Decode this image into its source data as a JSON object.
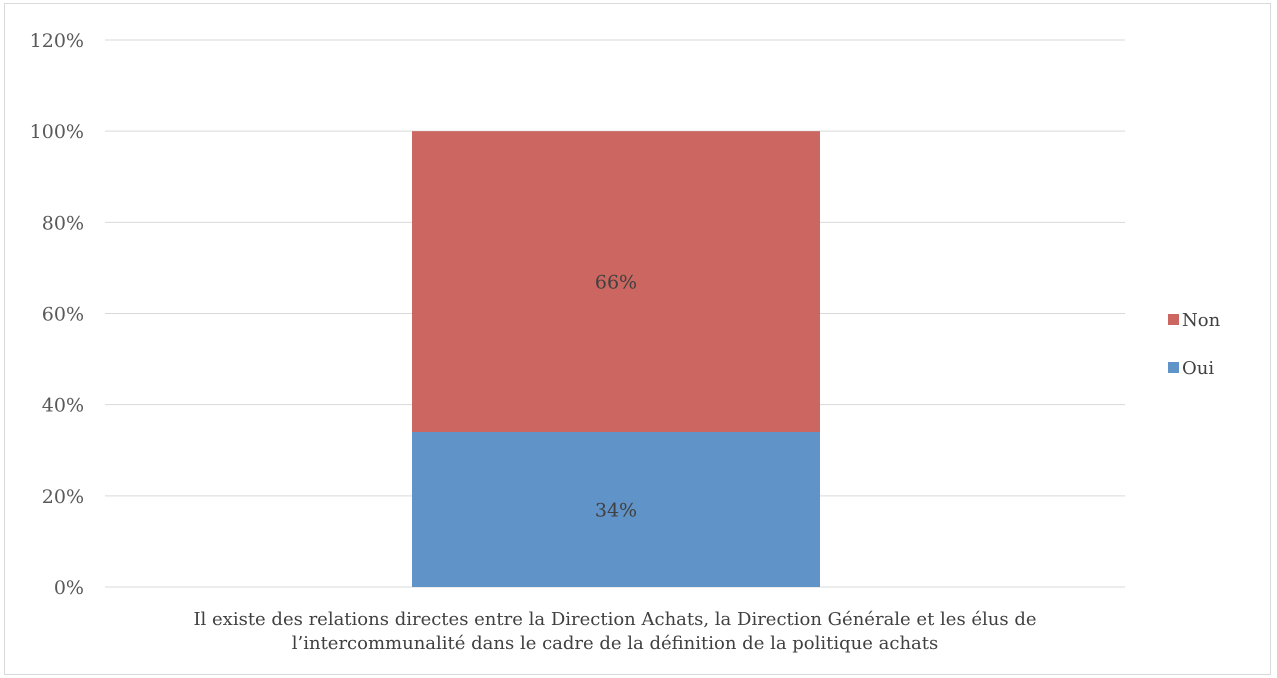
{
  "chart_data": {
    "type": "bar",
    "stacked": true,
    "categories": [
      "Il existe des relations directes entre la Direction Achats, la Direction Générale et les élus de l’intercommunalité dans le cadre de la définition de la politique achats"
    ],
    "category_label_lines": [
      "Il existe des relations directes entre la Direction Achats, la Direction Générale et les élus de",
      "l’intercommunalité dans le cadre de la définition de la politique achats"
    ],
    "series": [
      {
        "name": "Oui",
        "values": [
          0.34
        ],
        "data_labels": [
          "34%"
        ],
        "color": "#6094c9"
      },
      {
        "name": "Non",
        "values": [
          0.66
        ],
        "data_labels": [
          "66%"
        ],
        "color": "#cc6660"
      }
    ],
    "yticks": [
      "0%",
      "20%",
      "40%",
      "60%",
      "80%",
      "100%",
      "120%"
    ],
    "ylim": [
      0,
      1.2
    ],
    "grid": true,
    "legend": {
      "position": "right",
      "entries": [
        {
          "name": "Non",
          "color": "#cc6660"
        },
        {
          "name": "Oui",
          "color": "#6094c9"
        }
      ]
    },
    "title": "",
    "xlabel": "",
    "ylabel": ""
  }
}
